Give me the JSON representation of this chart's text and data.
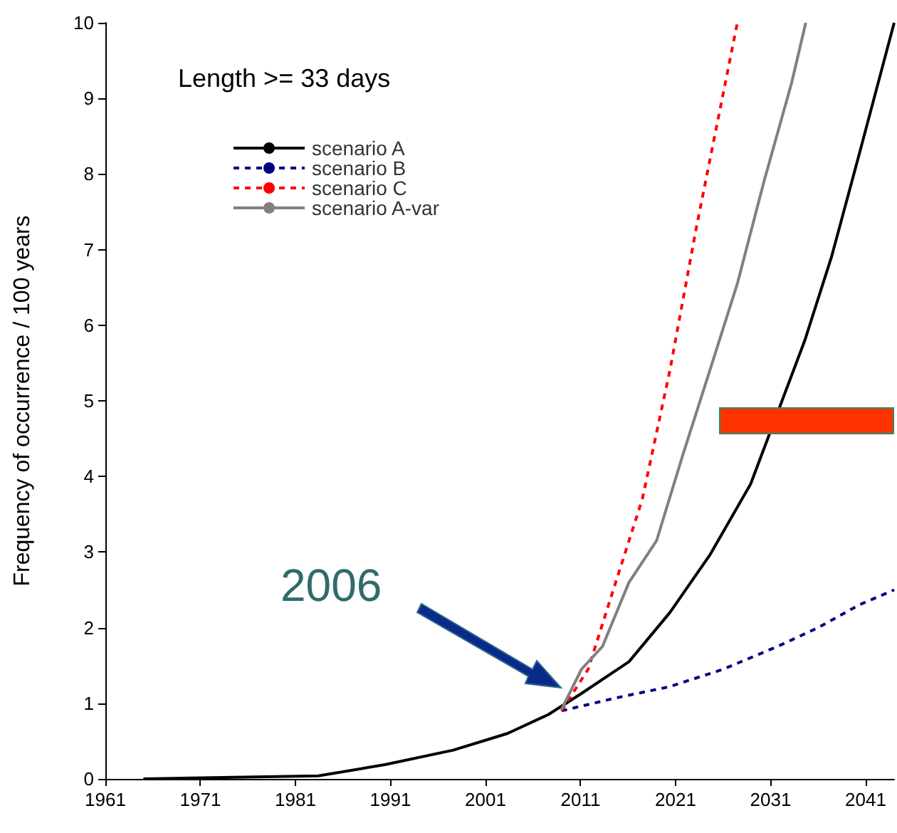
{
  "chart_data": {
    "type": "line",
    "title": "Length >= 33 days",
    "ylabel": "Frequency of occurrence / 100 years",
    "annotations": [
      "2006"
    ],
    "xlim": [
      1961,
      2044
    ],
    "xticks": [
      1961,
      1971,
      1981,
      1991,
      2001,
      2011,
      2021,
      2031,
      2041
    ],
    "ylim": [
      0,
      10
    ],
    "yticks": [
      0,
      1,
      2,
      3,
      4,
      5,
      6,
      7,
      8,
      9,
      10
    ],
    "grid": false,
    "legend": "top left",
    "marker": "none",
    "series": [
      {
        "name": "scenario A",
        "color": "#000000",
        "line_style": "solid",
        "x": [
          1965,
          1983.4,
          1990.5,
          1997.6,
          2003.3,
          2007.6,
          2011.1,
          2016.1,
          2020.4,
          2024.6,
          2028.9,
          2034.6,
          2037.4,
          2040.3,
          2044
        ],
        "values": [
          0,
          0.04,
          0.19,
          0.38,
          0.6,
          0.85,
          1.13,
          1.55,
          2.2,
          2.96,
          3.9,
          5.8,
          6.9,
          8.25,
          10
        ]
      },
      {
        "name": "scenario B",
        "color": "#000080",
        "line_style": "dashed",
        "x": [
          2009,
          2014.7,
          2020.4,
          2026,
          2031.7,
          2036,
          2040.3,
          2044
        ],
        "values": [
          0.9,
          1.07,
          1.22,
          1.45,
          1.75,
          2,
          2.3,
          2.5
        ]
      },
      {
        "name": "scenario C",
        "color": "#ff0000",
        "line_style": "dashed",
        "x": [
          2009,
          2011.8,
          2014.7,
          2017.5,
          2020.4,
          2023.2,
          2027.5
        ],
        "values": [
          0.9,
          1.45,
          2.6,
          3.7,
          5.4,
          7.3,
          10
        ]
      },
      {
        "name": "scenario A-var",
        "color": "#808080",
        "line_style": "solid",
        "x": [
          2009,
          2011.1,
          2013.3,
          2016.1,
          2019,
          2021.8,
          2024.6,
          2027.5,
          2030.3,
          2033.2,
          2034.7
        ],
        "values": [
          0.92,
          1.45,
          1.75,
          2.6,
          3.15,
          4.3,
          5.4,
          6.55,
          7.9,
          9.2,
          10
        ]
      }
    ]
  }
}
